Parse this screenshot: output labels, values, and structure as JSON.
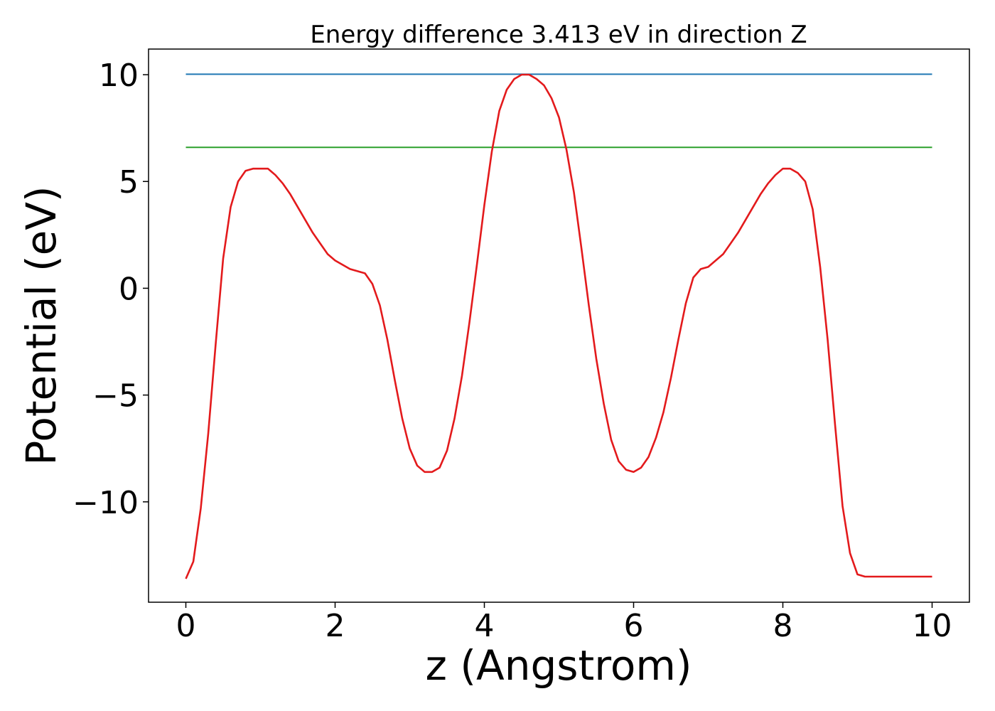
{
  "chart_data": {
    "type": "line",
    "title": "Energy difference 3.413 eV in direction Z",
    "xlabel": "z (Angstrom)",
    "ylabel": "Potential (eV)",
    "xlim": [
      -0.5,
      10.5
    ],
    "ylim": [
      -14.7,
      11.2
    ],
    "xticks": [
      0,
      2,
      4,
      6,
      8,
      10
    ],
    "xtick_labels": [
      "0",
      "2",
      "4",
      "6",
      "8",
      "10"
    ],
    "yticks": [
      -10,
      -5,
      0,
      5,
      10
    ],
    "ytick_labels": [
      "−10",
      "−5",
      "0",
      "5",
      "10"
    ],
    "grid": false,
    "series": [
      {
        "color": "#1f77b4",
        "x": [
          0,
          10
        ],
        "y": [
          10.02,
          10.02
        ]
      },
      {
        "color": "#2ca02c",
        "x": [
          0,
          10
        ],
        "y": [
          6.6,
          6.6
        ]
      },
      {
        "color": "#e31a1c",
        "x": [
          0,
          0.1,
          0.2,
          0.3,
          0.4,
          0.5,
          0.6,
          0.7,
          0.8,
          0.9,
          1.0,
          1.1,
          1.2,
          1.3,
          1.4,
          1.5,
          1.6,
          1.7,
          1.8,
          1.9,
          2.0,
          2.1,
          2.2,
          2.3,
          2.4,
          2.5,
          2.6,
          2.7,
          2.8,
          2.9,
          3.0,
          3.1,
          3.2,
          3.3,
          3.4,
          3.5,
          3.6,
          3.7,
          3.8,
          3.9,
          4.0,
          4.1,
          4.2,
          4.3,
          4.4,
          4.5,
          4.6,
          4.7,
          4.8,
          4.9,
          5.0,
          5.1,
          5.2,
          5.3,
          5.4,
          5.5,
          5.6,
          5.7,
          5.8,
          5.9,
          6.0,
          6.1,
          6.2,
          6.3,
          6.4,
          6.5,
          6.6,
          6.7,
          6.8,
          6.9,
          7.0,
          7.1,
          7.2,
          7.3,
          7.4,
          7.5,
          7.6,
          7.7,
          7.8,
          7.9,
          8.0,
          8.1,
          8.2,
          8.3,
          8.4,
          8.5,
          8.6,
          8.7,
          8.8,
          8.9,
          9.0,
          9.1,
          9.2,
          9.3,
          9.4,
          9.5,
          9.6,
          9.7,
          9.8,
          9.9,
          10.0
        ],
        "y": [
          -13.6,
          -12.8,
          -10.3,
          -6.8,
          -2.6,
          1.4,
          3.8,
          5.0,
          5.5,
          5.6,
          5.6,
          5.6,
          5.3,
          4.9,
          4.4,
          3.8,
          3.2,
          2.6,
          2.1,
          1.6,
          1.3,
          1.1,
          0.9,
          0.8,
          0.7,
          0.2,
          -0.8,
          -2.4,
          -4.3,
          -6.1,
          -7.5,
          -8.3,
          -8.6,
          -8.6,
          -8.4,
          -7.6,
          -6.1,
          -4.1,
          -1.6,
          1.1,
          3.9,
          6.4,
          8.3,
          9.3,
          9.8,
          10.0,
          10.0,
          9.8,
          9.5,
          8.9,
          8.0,
          6.5,
          4.5,
          1.9,
          -0.8,
          -3.3,
          -5.4,
          -7.1,
          -8.1,
          -8.5,
          -8.6,
          -8.4,
          -7.9,
          -7.0,
          -5.8,
          -4.2,
          -2.4,
          -0.7,
          0.5,
          0.9,
          1.0,
          1.3,
          1.6,
          2.1,
          2.6,
          3.2,
          3.8,
          4.4,
          4.9,
          5.3,
          5.6,
          5.6,
          5.4,
          5.0,
          3.7,
          1.0,
          -2.4,
          -6.4,
          -10.2,
          -12.4,
          -13.4,
          -13.5,
          -13.5,
          -13.5,
          -13.5,
          -13.5,
          -13.5,
          -13.5,
          -13.5,
          -13.5,
          -13.5
        ]
      }
    ]
  }
}
